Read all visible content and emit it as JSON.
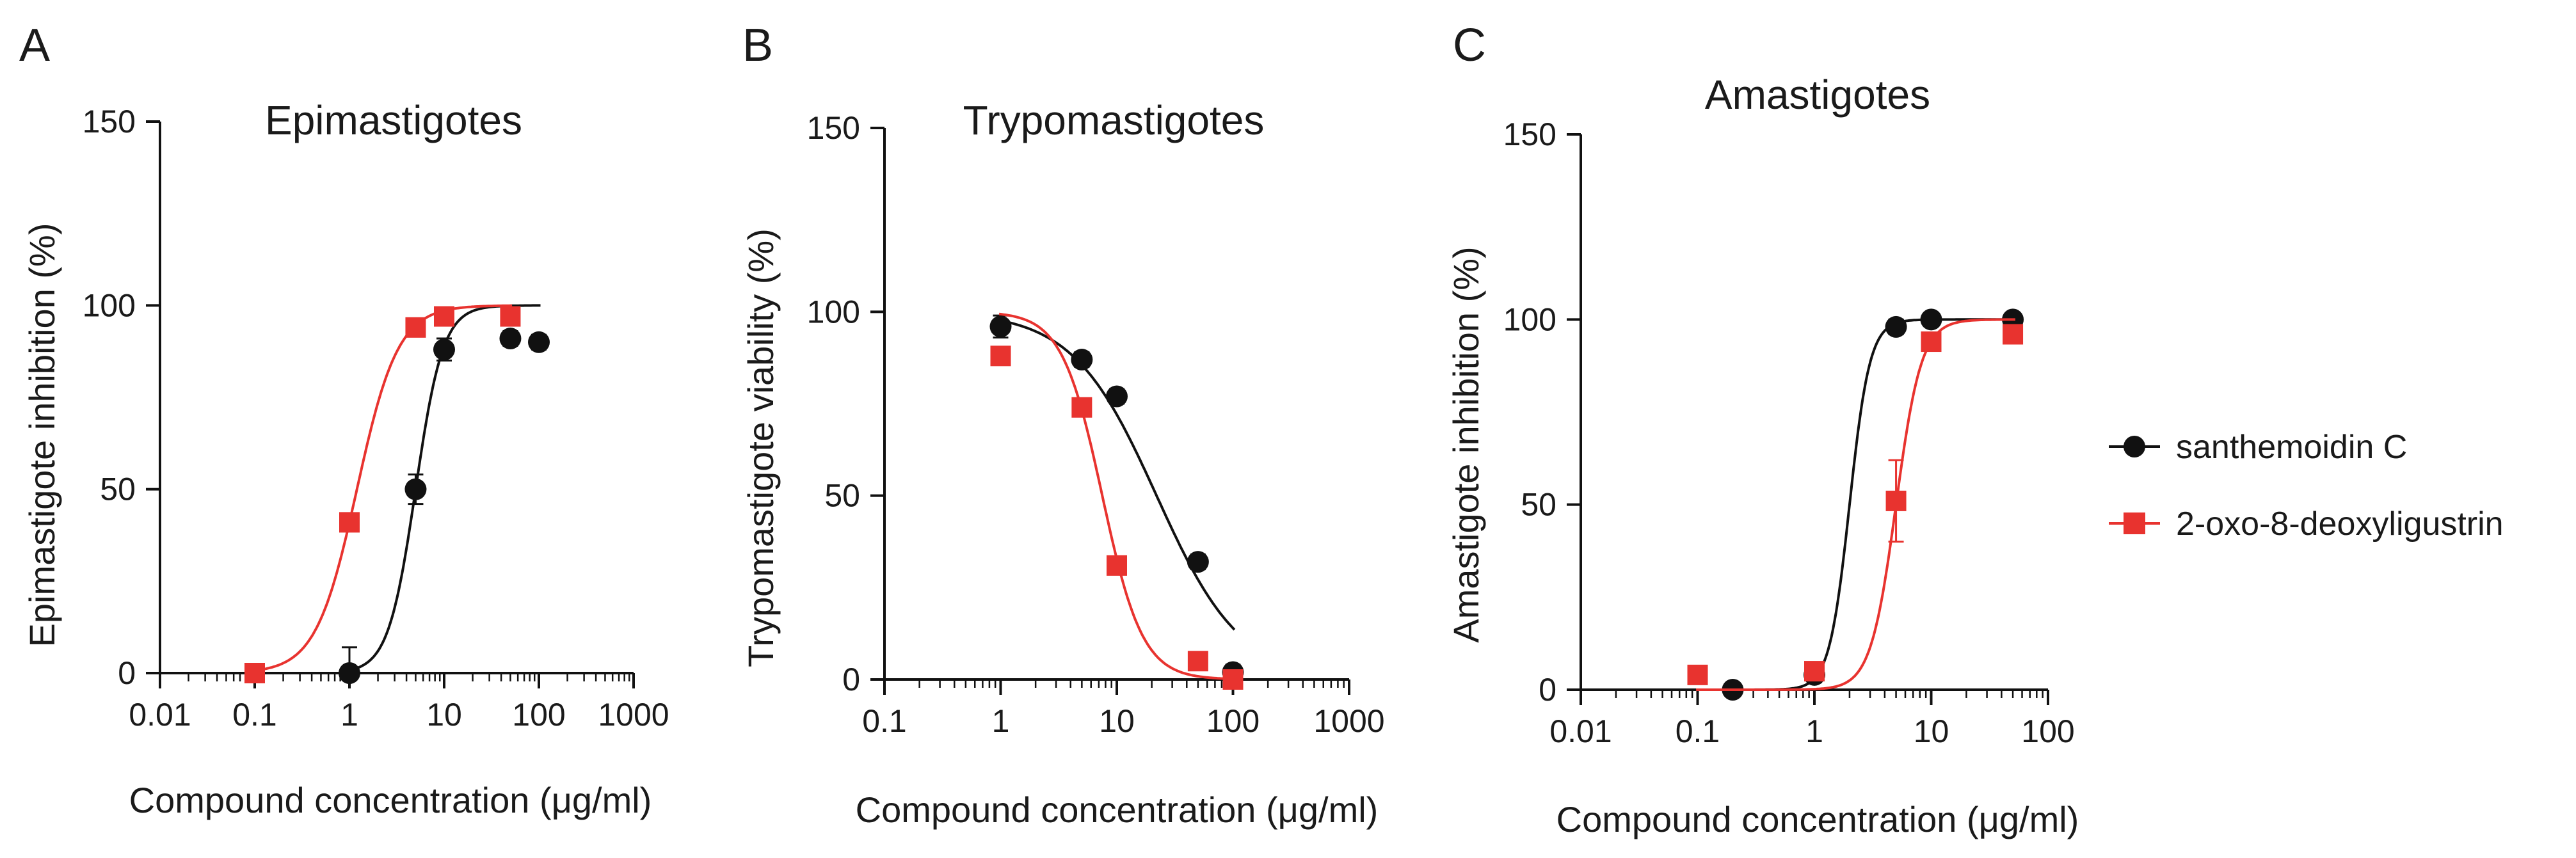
{
  "chart_data": [
    {
      "panel": "A",
      "type": "scatter",
      "title": "Epimastigotes",
      "xlabel": "Compound concentration (μg/ml)",
      "ylabel": "Epimastigote inhibition (%)",
      "xscale": "log",
      "xlim": [
        0.01,
        1000
      ],
      "ylim": [
        0,
        150
      ],
      "xticks": [
        "0.01",
        "0.1",
        "1",
        "10",
        "100",
        "1000"
      ],
      "yticks": [
        "0",
        "50",
        "100",
        "150"
      ],
      "series": [
        {
          "name": "santhemoidin C",
          "color": "#111111",
          "marker": "circle",
          "x": [
            1,
            5,
            10,
            50,
            100
          ],
          "y": [
            0,
            50,
            88,
            91,
            90
          ],
          "err": [
            7,
            4,
            3,
            2,
            2
          ],
          "fit": {
            "bottom": 0,
            "top": 100,
            "ec50": 5.0,
            "hill": 3.0
          }
        },
        {
          "name": "2-oxo-8-deoxyligustrin",
          "color": "#e8332f",
          "marker": "square",
          "x": [
            0.1,
            1,
            5,
            10,
            50
          ],
          "y": [
            0,
            41,
            94,
            97,
            97
          ],
          "err": [
            1,
            2,
            2,
            1,
            1
          ],
          "fit": {
            "bottom": 0,
            "top": 100,
            "ec50": 1.2,
            "hill": 2.0
          }
        }
      ]
    },
    {
      "panel": "B",
      "type": "scatter",
      "title": "Trypomastigotes",
      "xlabel": "Compound concentration (μg/ml)",
      "ylabel": "Trypomastigote viability  (%)",
      "xscale": "log",
      "xlim": [
        0.1,
        1000
      ],
      "ylim": [
        0,
        150
      ],
      "xticks": [
        "0.1",
        "1",
        "10",
        "100",
        "1000"
      ],
      "yticks": [
        "0",
        "50",
        "100",
        "150"
      ],
      "series": [
        {
          "name": "santhemoidin C",
          "color": "#111111",
          "marker": "circle",
          "x": [
            1,
            5,
            10,
            50,
            100
          ],
          "y": [
            96,
            87,
            77,
            32,
            2
          ],
          "err": [
            3,
            2,
            2,
            2,
            2
          ],
          "fit": {
            "bottom": 0,
            "top": 100,
            "ec50": 22,
            "hill": -1.2
          }
        },
        {
          "name": "2-oxo-8-deoxyligustrin",
          "color": "#e8332f",
          "marker": "square",
          "x": [
            1,
            5,
            10,
            50,
            100
          ],
          "y": [
            88,
            74,
            31,
            5,
            0
          ],
          "err": [
            2,
            2,
            2,
            1,
            1
          ],
          "fit": {
            "bottom": 0,
            "top": 100,
            "ec50": 7.5,
            "hill": -2.5
          }
        }
      ]
    },
    {
      "panel": "C",
      "type": "scatter",
      "title": "Amastigotes",
      "xlabel": "Compound concentration (μg/ml)",
      "ylabel": "Amastigote inhibition (%)",
      "xscale": "log",
      "xlim": [
        0.01,
        100
      ],
      "ylim": [
        0,
        150
      ],
      "xticks": [
        "0.01",
        "0.1",
        "1",
        "10",
        "100"
      ],
      "yticks": [
        "0",
        "50",
        "100",
        "150"
      ],
      "series": [
        {
          "name": "santhemoidin C",
          "color": "#111111",
          "marker": "circle",
          "x": [
            0.2,
            1,
            5,
            10,
            50
          ],
          "y": [
            0,
            4,
            98,
            100,
            100
          ],
          "err": [
            1,
            2,
            2,
            1,
            1
          ],
          "fit": {
            "bottom": 0,
            "top": 100,
            "ec50": 2.0,
            "hill": 5.0
          }
        },
        {
          "name": "2-oxo-8-deoxyligustrin",
          "color": "#e8332f",
          "marker": "square",
          "x": [
            0.1,
            1,
            5,
            10,
            50
          ],
          "y": [
            4,
            5,
            51,
            94,
            96
          ],
          "err": [
            1,
            1,
            11,
            2,
            1
          ],
          "fit": {
            "bottom": 0,
            "top": 100,
            "ec50": 5.0,
            "hill": 4.0
          }
        }
      ]
    }
  ],
  "legend": {
    "position": "right",
    "entries": [
      {
        "label": "santhemoidin C",
        "color": "#111111",
        "marker": "circle"
      },
      {
        "label": "2-oxo-8-deoxyligustrin",
        "color": "#e8332f",
        "marker": "square"
      }
    ]
  }
}
